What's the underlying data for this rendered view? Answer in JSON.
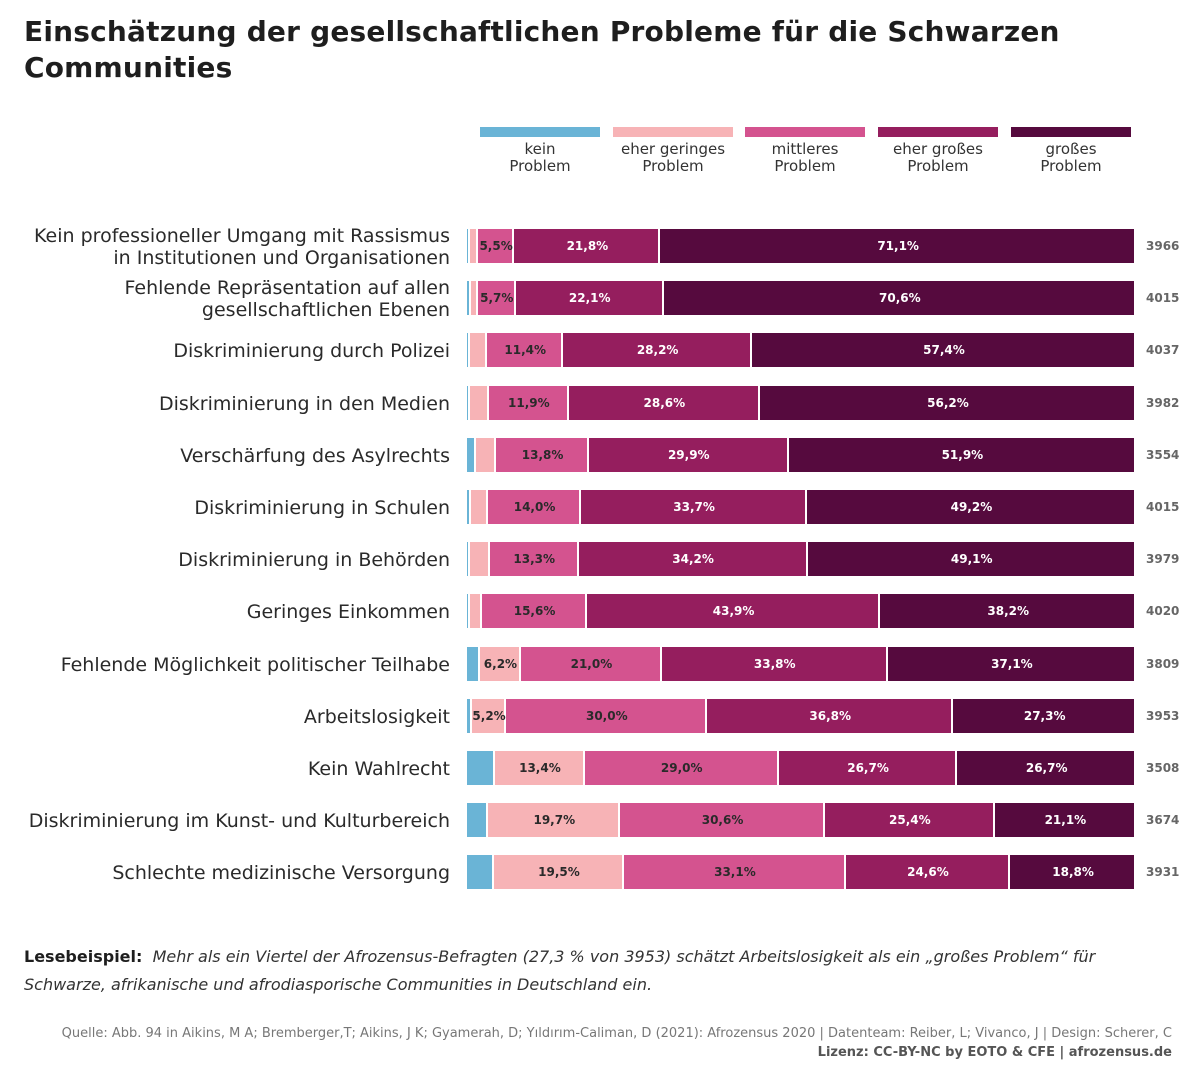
{
  "title": "Einschätzung der gesellschaftlichen Probleme für die Schwarzen Communities",
  "chart_data": {
    "type": "bar",
    "orientation": "horizontal",
    "stacked": "100%",
    "title": "Einschätzung der gesellschaftlichen Probleme für die Schwarzen Communities",
    "xlabel": "",
    "ylabel": "",
    "xlim": [
      0,
      100
    ],
    "legend_position": "top-right",
    "categories": [
      "Kein professioneller Umgang mit Rassismus\nin Institutionen und Organisationen",
      "Fehlende Repräsentation auf allen\ngesellschaftlichen Ebenen",
      "Diskriminierung durch Polizei",
      "Diskriminierung in den Medien",
      "Verschärfung des Asylrechts",
      "Diskriminierung in Schulen",
      "Diskriminierung in Behörden",
      "Geringes Einkommen",
      "Fehlende Möglichkeit politischer Teilhabe",
      "Arbeitslosigkeit",
      "Kein Wahlrecht",
      "Diskriminierung im Kunst- und Kulturbereich",
      "Schlechte medizinische Versorgung"
    ],
    "series": [
      {
        "name": "kein\nProblem",
        "color": "#6ab4d6",
        "label_color": "#2a2a2a",
        "values": [
          0.5,
          0.6,
          0.5,
          0.5,
          1.4,
          0.6,
          0.5,
          0.4,
          1.9,
          0.7,
          4.2,
          3.2,
          4.0
        ],
        "labels": [
          "",
          "",
          "",
          "",
          "",
          "",
          "",
          "",
          "",
          "",
          "",
          "",
          ""
        ]
      },
      {
        "name": "eher geringes\nProblem",
        "color": "#f7b3b6",
        "label_color": "#2a2a2a",
        "values": [
          1.1,
          1.0,
          2.5,
          2.8,
          3.0,
          2.5,
          2.9,
          1.9,
          6.2,
          5.2,
          13.4,
          19.7,
          19.5
        ],
        "labels": [
          "",
          "",
          "",
          "",
          "",
          "",
          "",
          "",
          "6,2%",
          "5,2%",
          "13,4%",
          "19,7%",
          "19,5%"
        ]
      },
      {
        "name": "mittleres\nProblem",
        "color": "#d4538f",
        "label_color": "#2a2a2a",
        "values": [
          5.5,
          5.7,
          11.4,
          11.9,
          13.8,
          14.0,
          13.3,
          15.6,
          21.0,
          30.0,
          29.0,
          30.6,
          33.1
        ],
        "labels": [
          "5,5%",
          "5,7%",
          "11,4%",
          "11,9%",
          "13,8%",
          "14,0%",
          "13,3%",
          "15,6%",
          "21,0%",
          "30,0%",
          "29,0%",
          "30,6%",
          "33,1%"
        ]
      },
      {
        "name": "eher großes\nProblem",
        "color": "#951e5e",
        "label_color": "#ffffff",
        "values": [
          21.8,
          22.1,
          28.2,
          28.6,
          29.9,
          33.7,
          34.2,
          43.9,
          33.8,
          36.8,
          26.7,
          25.4,
          24.6
        ],
        "labels": [
          "21,8%",
          "22,1%",
          "28,2%",
          "28,6%",
          "29,9%",
          "33,7%",
          "34,2%",
          "43,9%",
          "33,8%",
          "36,8%",
          "26,7%",
          "25,4%",
          "24,6%"
        ]
      },
      {
        "name": "großes\nProblem",
        "color": "#560a3e",
        "label_color": "#ffffff",
        "values": [
          71.1,
          70.6,
          57.4,
          56.2,
          51.9,
          49.2,
          49.1,
          38.2,
          37.1,
          27.3,
          26.7,
          21.1,
          18.8
        ],
        "labels": [
          "71,1%",
          "70,6%",
          "57,4%",
          "56,2%",
          "51,9%",
          "49,2%",
          "49,1%",
          "38,2%",
          "37,1%",
          "27,3%",
          "26,7%",
          "21,1%",
          "18,8%"
        ]
      }
    ],
    "n": [
      "3966",
      "4015",
      "4037",
      "3982",
      "3554",
      "4015",
      "3979",
      "4020",
      "3809",
      "3953",
      "3508",
      "3674",
      "3931"
    ]
  },
  "reading_example": {
    "label": "Lesebeispiel:",
    "text": "Mehr als ein Viertel der Afrozensus-Befragten (27,3 % von 3953) schätzt Arbeitslosigkeit als ein „großes Problem“ für Schwarze, afrikanische und afrodiasporische Communities in Deutschland ein."
  },
  "source": "Quelle: Abb. 94 in Aikins, M A; Bremberger,T; Aikins, J K; Gyamerah, D; Yıldırım-Caliman, D (2021): Afrozensus 2020 | Datenteam: Reiber, L; Vivanco, J | Design: Scherer, C",
  "license": "Lizenz: CC-BY-NC by EOTO & CFE | afrozensus.de"
}
